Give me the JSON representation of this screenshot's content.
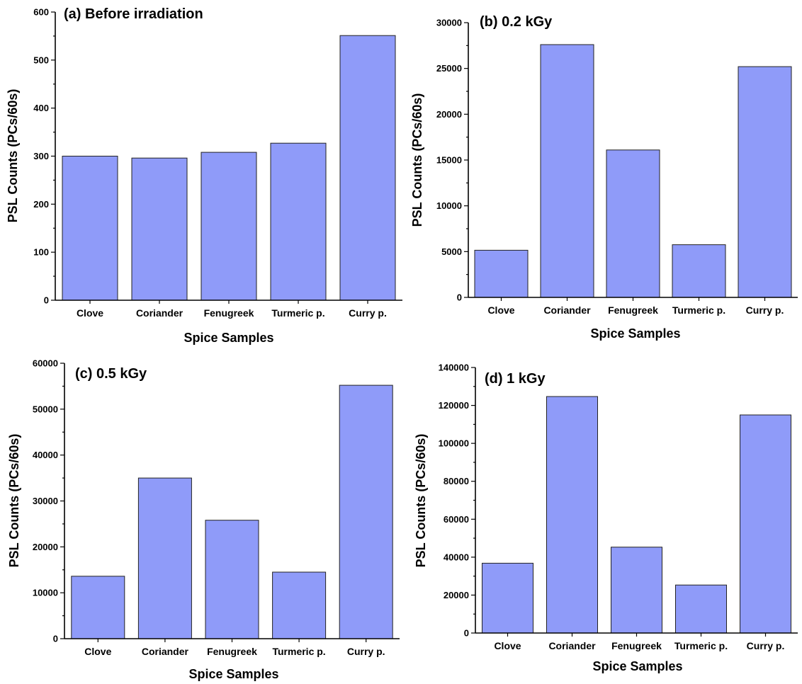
{
  "colors": {
    "bar": "#8f9bf9",
    "axis": "#000000"
  },
  "chart_data": [
    {
      "type": "bar",
      "title": "(a) Before irradiation",
      "xlabel": "Spice Samples",
      "ylabel": "PSL Counts (PCs/60s)",
      "categories": [
        "Clove",
        "Coriander",
        "Fenugreek",
        "Turmeric p.",
        "Curry p."
      ],
      "values": [
        300,
        296,
        308,
        327,
        551
      ],
      "ylim": [
        0,
        600
      ],
      "yticks": [
        0,
        100,
        200,
        300,
        400,
        500,
        600
      ]
    },
    {
      "type": "bar",
      "title": "(b) 0.2 kGy",
      "xlabel": "Spice Samples",
      "ylabel": "PSL Counts (PCs/60s)",
      "categories": [
        "Clove",
        "Coriander",
        "Fenugreek",
        "Turmeric p.",
        "Curry p."
      ],
      "values": [
        5150,
        27600,
        16100,
        5750,
        25200
      ],
      "ylim": [
        0,
        30000
      ],
      "yticks": [
        0,
        5000,
        10000,
        15000,
        20000,
        25000,
        30000
      ]
    },
    {
      "type": "bar",
      "title": "(c) 0.5 kGy",
      "xlabel": "Spice Samples",
      "ylabel": "PSL Counts (PCs/60s)",
      "categories": [
        "Clove",
        "Coriander",
        "Fenugreek",
        "Turmeric p.",
        "Curry p."
      ],
      "values": [
        13600,
        35000,
        25800,
        14500,
        55200
      ],
      "ylim": [
        0,
        60000
      ],
      "yticks": [
        0,
        10000,
        20000,
        30000,
        40000,
        50000,
        60000
      ]
    },
    {
      "type": "bar",
      "title": "(d) 1 kGy",
      "xlabel": "Spice Samples",
      "ylabel": "PSL Counts (PCs/60s)",
      "categories": [
        "Clove",
        "Coriander",
        "Fenugreek",
        "Turmeric p.",
        "Curry p."
      ],
      "values": [
        36800,
        124700,
        45300,
        25300,
        115000
      ],
      "ylim": [
        0,
        140000
      ],
      "yticks": [
        0,
        20000,
        40000,
        60000,
        80000,
        100000,
        120000,
        140000
      ]
    }
  ]
}
